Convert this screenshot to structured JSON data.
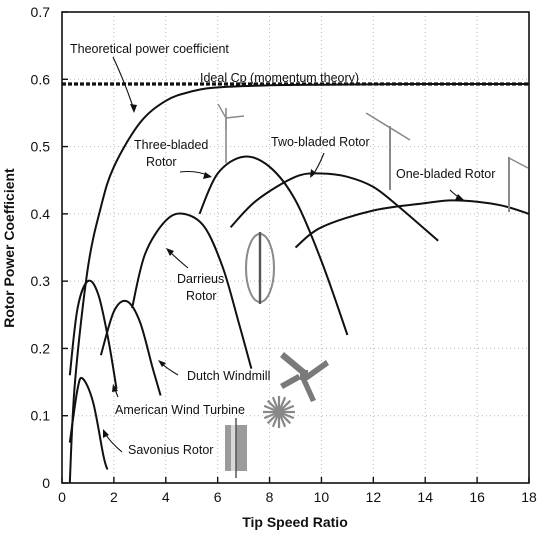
{
  "chart_data": {
    "type": "line",
    "xlabel": "Tip Speed Ratio",
    "ylabel": "Rotor Power Coefficient",
    "xlim": [
      0,
      18
    ],
    "ylim": [
      0,
      0.7
    ],
    "x_ticks": [
      "0",
      "2",
      "4",
      "6",
      "8",
      "10",
      "12",
      "14",
      "16",
      "18"
    ],
    "y_ticks": [
      "0",
      "0.1",
      "0.2",
      "0.3",
      "0.4",
      "0.5",
      "0.6",
      "0.7"
    ],
    "grid": "dotted",
    "ideal_line": {
      "label": "Ideal Cp (momentum theory)",
      "y": 0.593
    },
    "series": [
      {
        "name": "Theoretical power coefficient",
        "x": [
          0.3,
          0.5,
          1,
          1.5,
          2,
          3,
          4,
          5,
          6,
          8,
          10,
          14,
          18
        ],
        "y": [
          0.0,
          0.15,
          0.32,
          0.41,
          0.47,
          0.535,
          0.568,
          0.582,
          0.588,
          0.591,
          0.592,
          0.593,
          0.593
        ]
      },
      {
        "name": "Three-bladed Rotor",
        "x": [
          5.3,
          6,
          7,
          8,
          9,
          10,
          11
        ],
        "y": [
          0.4,
          0.46,
          0.485,
          0.47,
          0.42,
          0.33,
          0.22
        ]
      },
      {
        "name": "Two-bladed Rotor",
        "x": [
          6.5,
          7.5,
          9,
          10,
          11,
          12,
          13,
          14.5
        ],
        "y": [
          0.38,
          0.42,
          0.455,
          0.46,
          0.455,
          0.44,
          0.41,
          0.36
        ]
      },
      {
        "name": "One-bladed Rotor",
        "x": [
          9.0,
          10,
          12,
          14,
          15,
          16,
          17,
          18
        ],
        "y": [
          0.35,
          0.38,
          0.405,
          0.416,
          0.42,
          0.418,
          0.412,
          0.4
        ]
      },
      {
        "name": "Darrieus Rotor",
        "x": [
          2.7,
          3.2,
          4,
          4.7,
          5.5,
          6.2,
          6.8,
          7.3
        ],
        "y": [
          0.26,
          0.34,
          0.39,
          0.4,
          0.38,
          0.32,
          0.24,
          0.17
        ]
      },
      {
        "name": "Dutch Windmill",
        "x": [
          1.5,
          2,
          2.5,
          3,
          3.5,
          3.8
        ],
        "y": [
          0.19,
          0.255,
          0.27,
          0.24,
          0.17,
          0.13
        ]
      },
      {
        "name": "American Wind Turbine",
        "x": [
          0.3,
          0.6,
          1,
          1.4,
          1.8,
          2.1
        ],
        "y": [
          0.16,
          0.26,
          0.3,
          0.28,
          0.21,
          0.14
        ]
      },
      {
        "name": "Savonius Rotor",
        "x": [
          0.3,
          0.6,
          0.8,
          1.2,
          1.6,
          1.75
        ],
        "y": [
          0.06,
          0.14,
          0.155,
          0.12,
          0.04,
          0.02
        ]
      }
    ],
    "annotations": {
      "theoretical": "Theoretical power coefficient",
      "ideal": "Ideal Cp (momentum theory)",
      "three_line1": "Three-bladed",
      "three_line2": "Rotor",
      "two": "Two-bladed Rotor",
      "one": "One-bladed Rotor",
      "darrieus_line1": "Darrieus",
      "darrieus_line2": "Rotor",
      "dutch": "Dutch Windmill",
      "american": "American Wind Turbine",
      "savonius": "Savonius Rotor"
    }
  },
  "colors": {
    "curve": "#111111",
    "ideal": "#111111",
    "grid": "#b8b8b8",
    "illustration": "#8a8a8a"
  }
}
